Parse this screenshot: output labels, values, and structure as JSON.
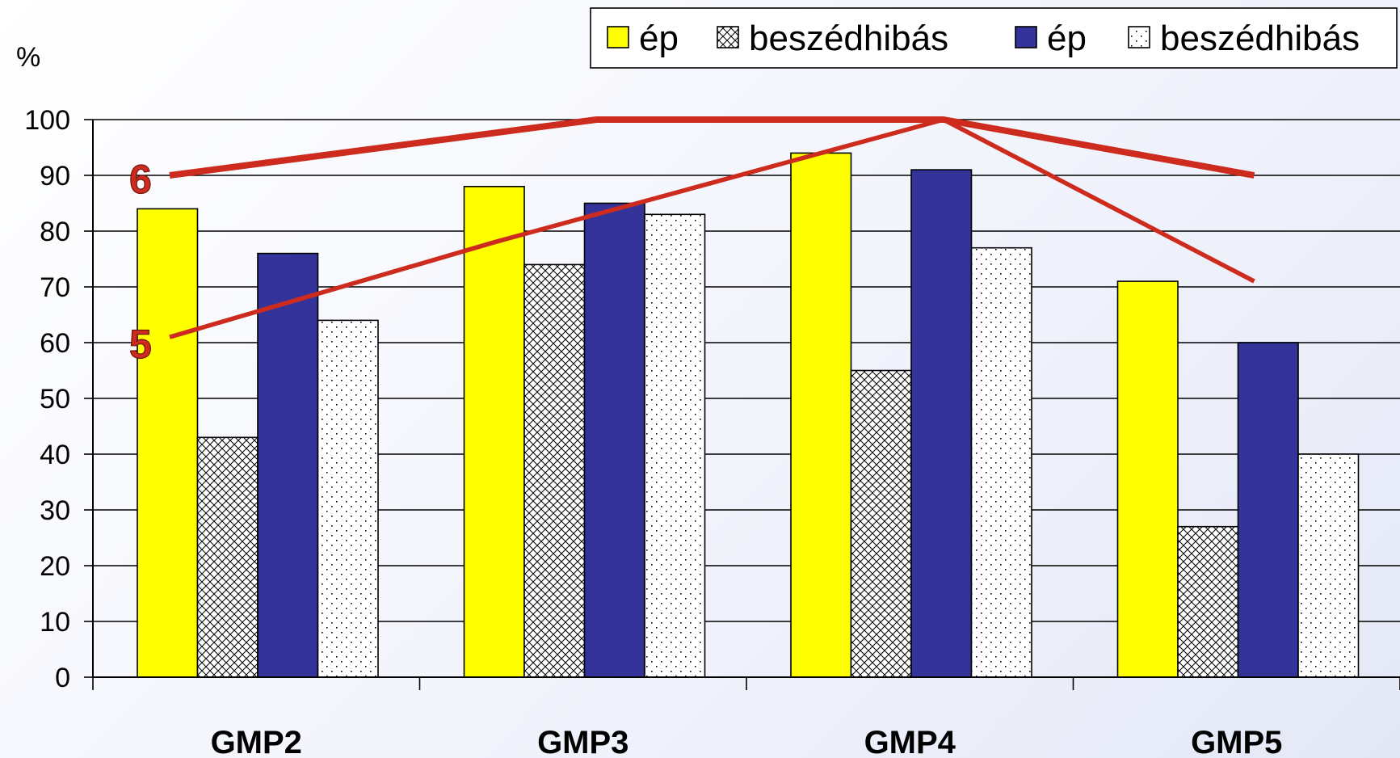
{
  "chart_data": {
    "type": "bar",
    "unit_label": "%",
    "categories": [
      "GMP2",
      "GMP3",
      "GMP4",
      "GMP5"
    ],
    "ylim": [
      0,
      100
    ],
    "yticks": [
      0,
      10,
      20,
      30,
      40,
      50,
      60,
      70,
      80,
      90,
      100
    ],
    "grid": true,
    "legend_position": "top-right",
    "series": [
      {
        "name": "ép",
        "color": "#ffff00",
        "pattern": "solid",
        "values": [
          84,
          88,
          94,
          71
        ]
      },
      {
        "name": "beszédhibás",
        "color": "#ffffff",
        "pattern": "crosshatch",
        "values": [
          43,
          74,
          55,
          27
        ]
      },
      {
        "name": "ép",
        "color": "#333399",
        "pattern": "solid",
        "values": [
          76,
          85,
          91,
          60
        ]
      },
      {
        "name": "beszédhibás",
        "color": "#ffffff",
        "pattern": "dots",
        "values": [
          64,
          83,
          77,
          40
        ]
      }
    ],
    "annotations": [
      {
        "label": "6",
        "color": "#cc2b1d",
        "points": [
          [
            "GMP2",
            90
          ],
          [
            "GMP3",
            100
          ],
          [
            "GMP4",
            100
          ],
          [
            "GMP5",
            90
          ]
        ]
      },
      {
        "label": "5",
        "color": "#cc2b1d",
        "points": [
          [
            "GMP2",
            61
          ],
          [
            "GMP3",
            78
          ],
          [
            "GMP4",
            100
          ],
          [
            "GMP5",
            71
          ]
        ]
      }
    ]
  }
}
